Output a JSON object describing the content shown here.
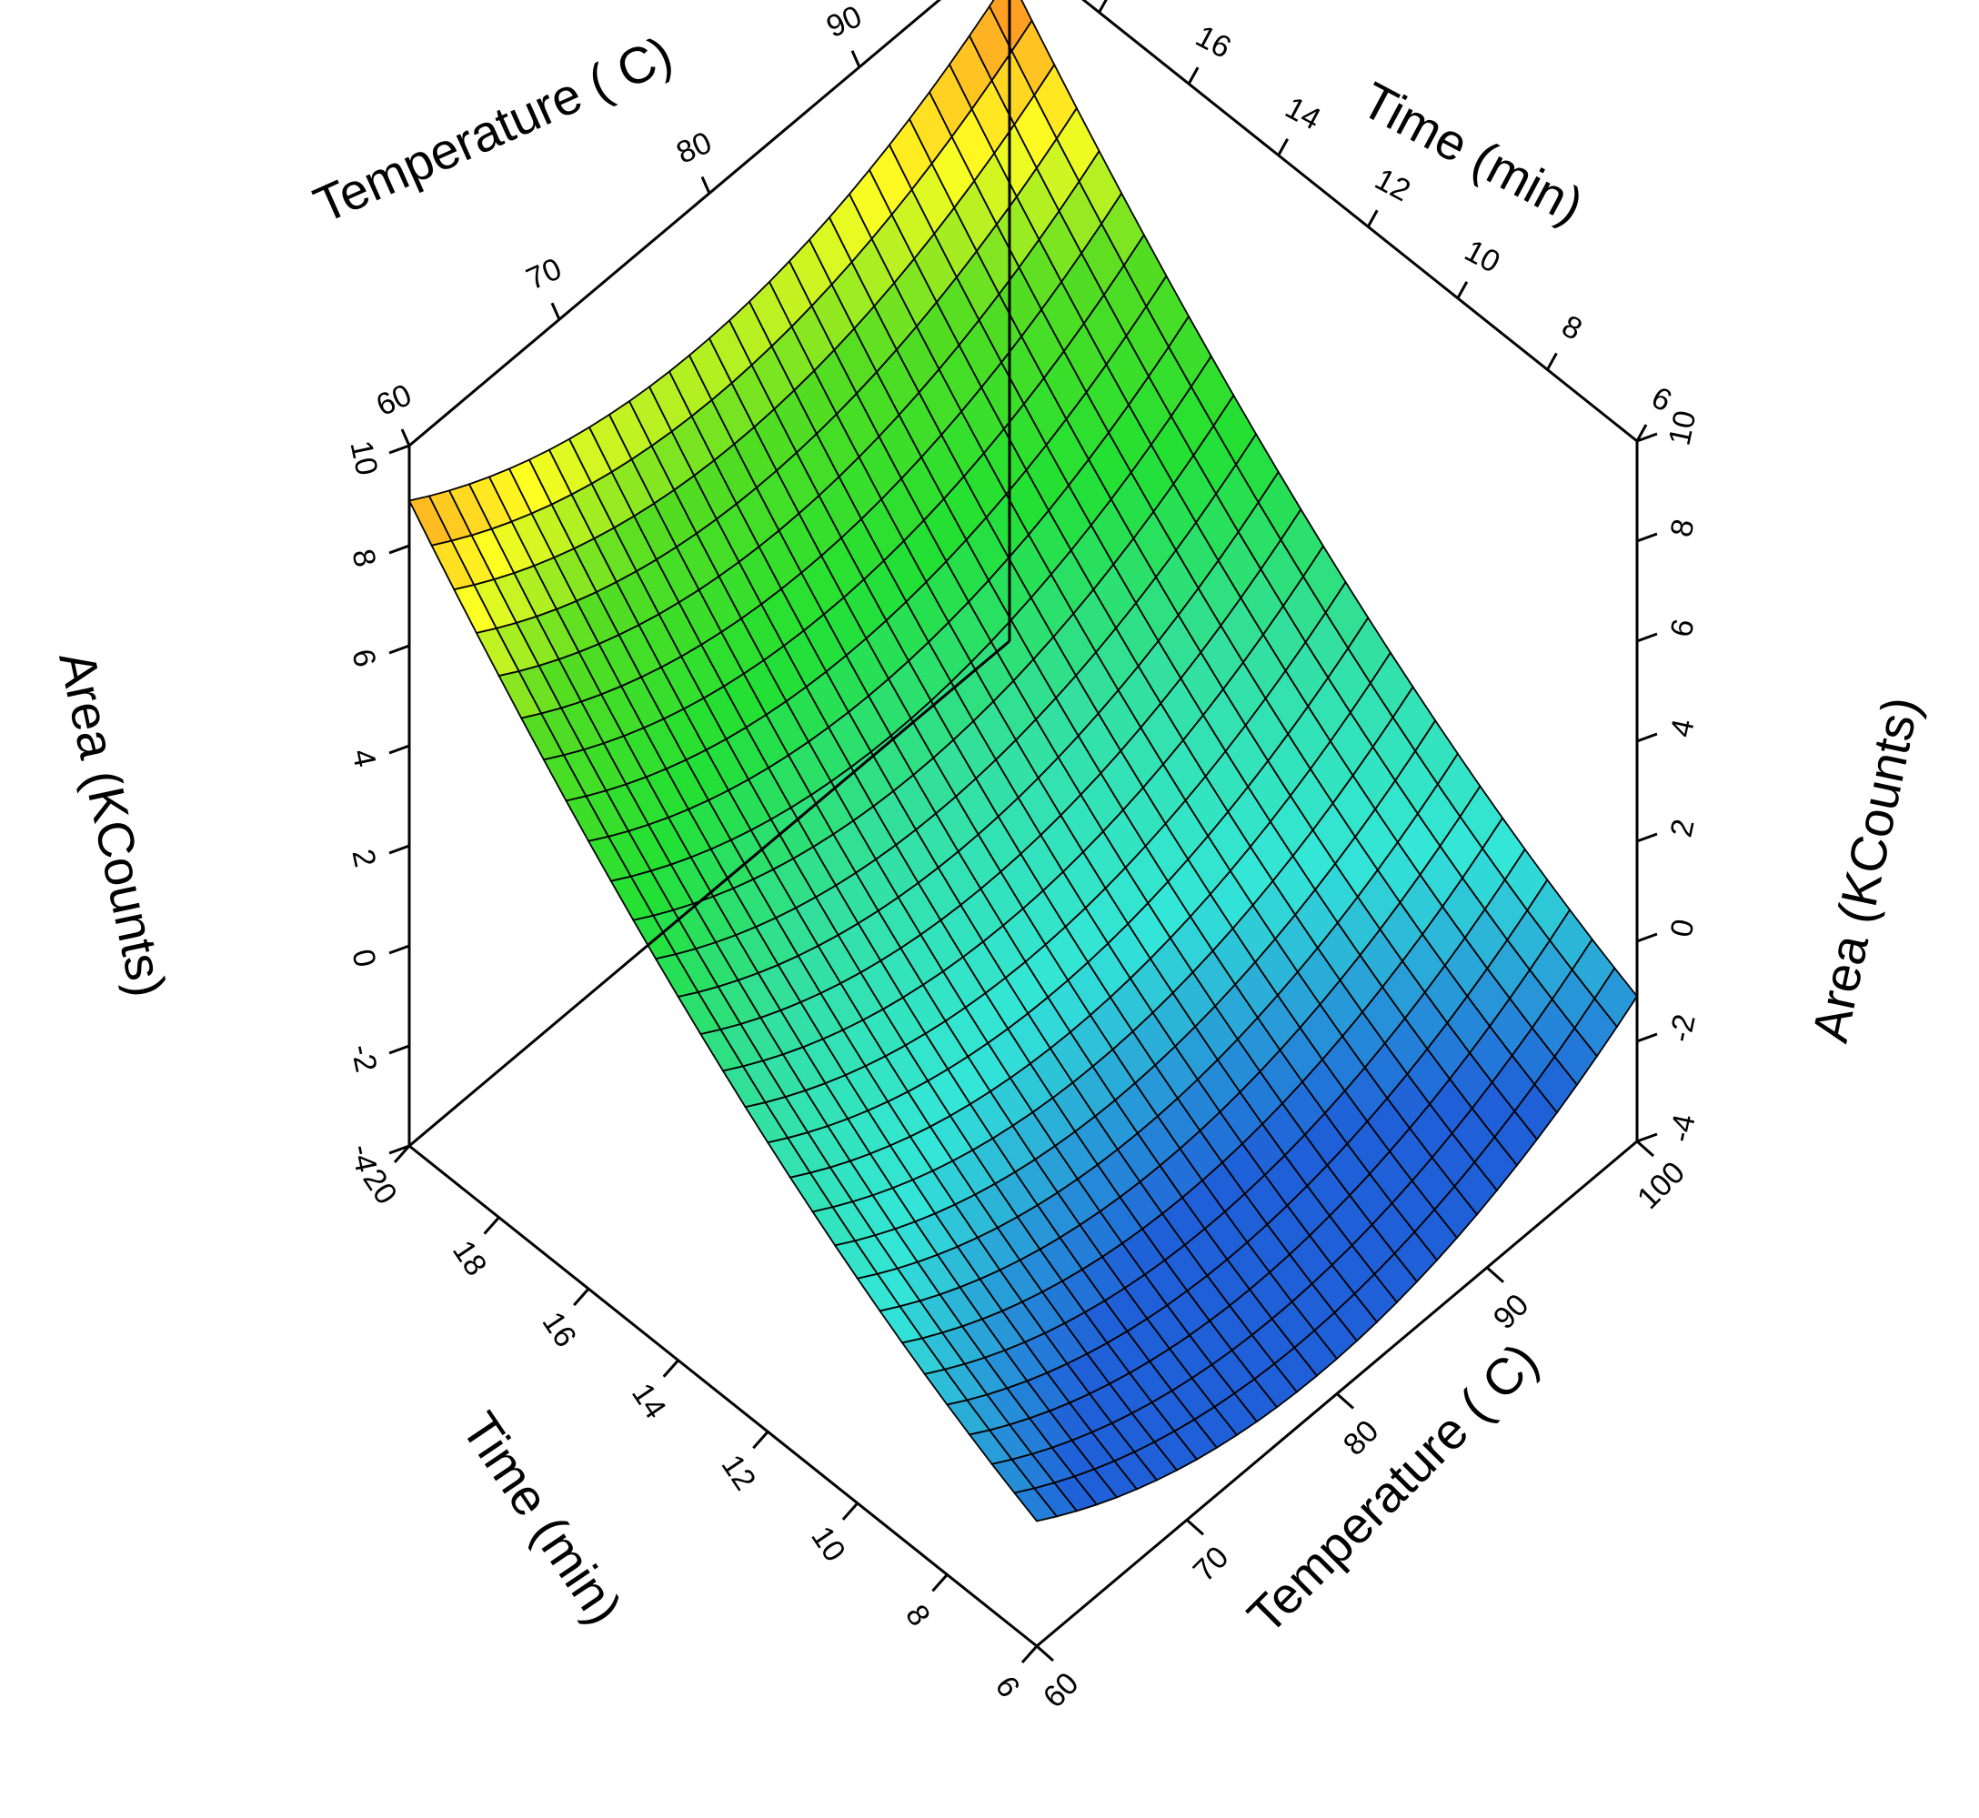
{
  "chart_data": {
    "type": "surface3d",
    "title": "",
    "x_axis": {
      "label": "Temperature ( C)",
      "min": 60,
      "max": 100,
      "ticks": [
        60,
        70,
        80,
        90,
        100
      ]
    },
    "y_axis": {
      "label": "Time (min)",
      "min": 6,
      "max": 20,
      "ticks": [
        6,
        8,
        10,
        12,
        14,
        16,
        18,
        20
      ]
    },
    "z_axis": {
      "label": "Area (KCounts)",
      "min": -4,
      "max": 10,
      "ticks": [
        -4,
        -2,
        0,
        2,
        4,
        6,
        8,
        10
      ]
    },
    "grid": false,
    "colormap": [
      {
        "value": -2,
        "color": "#1f5fd8"
      },
      {
        "value": 0,
        "color": "#33e6d8"
      },
      {
        "value": 2,
        "color": "#33e0a0"
      },
      {
        "value": 4,
        "color": "#22e033"
      },
      {
        "value": 6,
        "color": "#55dd22"
      },
      {
        "value": 7.5,
        "color": "#ffff22"
      },
      {
        "value": 9,
        "color": "#ff9922"
      },
      {
        "value": 10,
        "color": "#ff4411"
      }
    ],
    "surface_samples": [
      {
        "temperature": 60,
        "time": 20,
        "area": 10.5
      },
      {
        "temperature": 100,
        "time": 20,
        "area": 11.0
      },
      {
        "temperature": 80,
        "time": 20,
        "area": 6.9
      },
      {
        "temperature": 80,
        "time": 6,
        "area": -3.5
      },
      {
        "temperature": 60,
        "time": 6,
        "area": -1.9
      },
      {
        "temperature": 100,
        "time": 6,
        "area": -1.3
      },
      {
        "temperature": 80,
        "time": 13,
        "area": 0.7
      },
      {
        "temperature": 72,
        "time": 10,
        "area": -1.7
      }
    ]
  }
}
